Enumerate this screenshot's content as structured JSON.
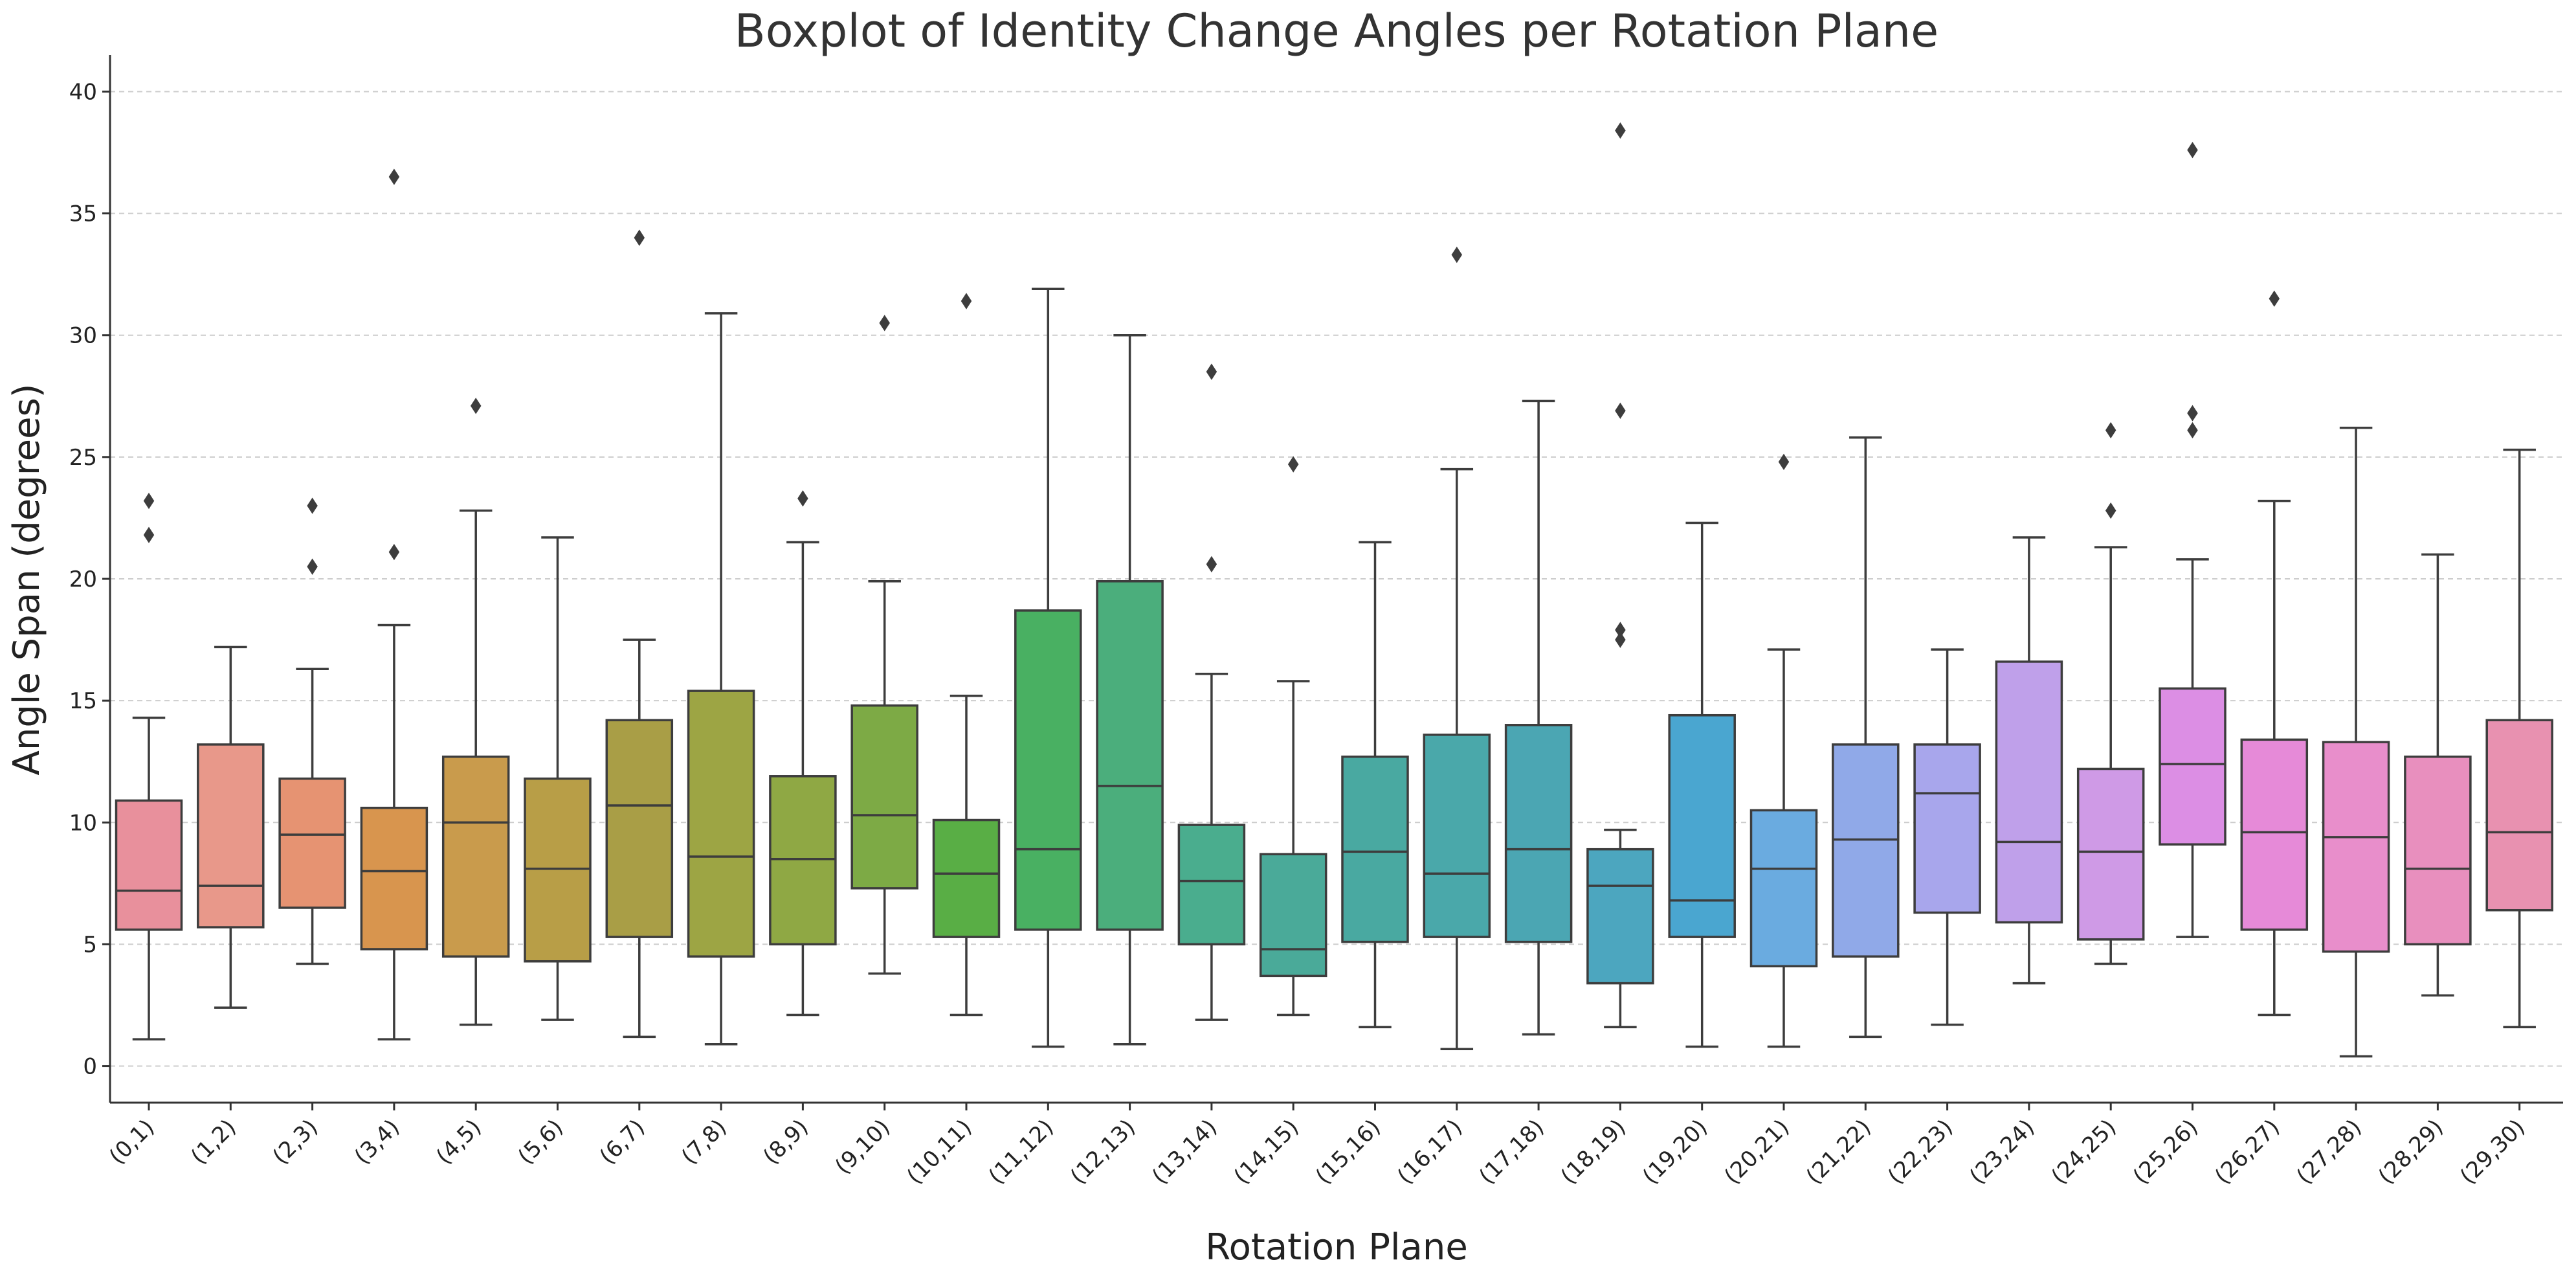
{
  "chart_data": {
    "type": "boxplot",
    "title": "Boxplot of Identity Change Angles per Rotation Plane",
    "xlabel": "Rotation Plane",
    "ylabel": "Angle Span (degrees)",
    "ylim": [
      -1.5,
      41.5
    ],
    "yticks": [
      0,
      5,
      10,
      15,
      20,
      25,
      30,
      35,
      40
    ],
    "ytick_labels": [
      "0",
      "5",
      "10",
      "15",
      "20",
      "25",
      "30",
      "35",
      "40"
    ],
    "grid": "horizontal dashed",
    "categories": [
      "(0,1)",
      "(1,2)",
      "(2,3)",
      "(3,4)",
      "(4,5)",
      "(5,6)",
      "(6,7)",
      "(7,8)",
      "(8,9)",
      "(9,10)",
      "(10,11)",
      "(11,12)",
      "(12,13)",
      "(13,14)",
      "(14,15)",
      "(15,16)",
      "(16,17)",
      "(17,18)",
      "(18,19)",
      "(19,20)",
      "(20,21)",
      "(21,22)",
      "(22,23)",
      "(23,24)",
      "(24,25)",
      "(25,26)",
      "(26,27)",
      "(27,28)",
      "(28,29)",
      "(29,30)"
    ],
    "boxes": [
      {
        "whislo": 1.1,
        "q1": 5.6,
        "med": 7.2,
        "q3": 10.9,
        "whishi": 14.3,
        "fliers": [
          21.8,
          23.2
        ],
        "color": "#e8909c"
      },
      {
        "whislo": 2.4,
        "q1": 5.7,
        "med": 7.4,
        "q3": 13.2,
        "whishi": 17.2,
        "fliers": [],
        "color": "#e8988a"
      },
      {
        "whislo": 4.2,
        "q1": 6.5,
        "med": 9.5,
        "q3": 11.8,
        "whishi": 16.3,
        "fliers": [
          20.5,
          23.0
        ],
        "color": "#e69372"
      },
      {
        "whislo": 1.1,
        "q1": 4.8,
        "med": 8.0,
        "q3": 10.6,
        "whishi": 18.1,
        "fliers": [
          21.1,
          36.5
        ],
        "color": "#d8954e"
      },
      {
        "whislo": 1.7,
        "q1": 4.5,
        "med": 10.0,
        "q3": 12.7,
        "whishi": 22.8,
        "fliers": [
          27.1
        ],
        "color": "#c99b4c"
      },
      {
        "whislo": 1.9,
        "q1": 4.3,
        "med": 8.1,
        "q3": 11.8,
        "whishi": 21.7,
        "fliers": [],
        "color": "#b89e47"
      },
      {
        "whislo": 1.2,
        "q1": 5.3,
        "med": 10.7,
        "q3": 14.2,
        "whishi": 17.5,
        "fliers": [
          34.0
        ],
        "color": "#a99e46"
      },
      {
        "whislo": 0.9,
        "q1": 4.5,
        "med": 8.6,
        "q3": 15.4,
        "whishi": 30.9,
        "fliers": [],
        "color": "#9da544"
      },
      {
        "whislo": 2.1,
        "q1": 5.0,
        "med": 8.5,
        "q3": 11.9,
        "whishi": 21.5,
        "fliers": [
          23.3
        ],
        "color": "#8fa844"
      },
      {
        "whislo": 3.8,
        "q1": 7.3,
        "med": 10.3,
        "q3": 14.8,
        "whishi": 19.9,
        "fliers": [
          30.5
        ],
        "color": "#7daa45"
      },
      {
        "whislo": 2.1,
        "q1": 5.3,
        "med": 7.9,
        "q3": 10.1,
        "whishi": 15.2,
        "fliers": [
          31.4
        ],
        "color": "#59ae45"
      },
      {
        "whislo": 0.8,
        "q1": 5.6,
        "med": 8.9,
        "q3": 18.7,
        "whishi": 31.9,
        "fliers": [],
        "color": "#49b062"
      },
      {
        "whislo": 0.9,
        "q1": 5.6,
        "med": 11.5,
        "q3": 19.9,
        "whishi": 30.0,
        "fliers": [],
        "color": "#4bae7c"
      },
      {
        "whislo": 1.9,
        "q1": 5.0,
        "med": 7.6,
        "q3": 9.9,
        "whishi": 16.1,
        "fliers": [
          20.6,
          28.5
        ],
        "color": "#4aad8e"
      },
      {
        "whislo": 2.1,
        "q1": 3.7,
        "med": 4.8,
        "q3": 8.7,
        "whishi": 15.8,
        "fliers": [
          24.7
        ],
        "color": "#4aaa99"
      },
      {
        "whislo": 1.6,
        "q1": 5.1,
        "med": 8.8,
        "q3": 12.7,
        "whishi": 21.5,
        "fliers": [],
        "color": "#49a9a1"
      },
      {
        "whislo": 0.7,
        "q1": 5.3,
        "med": 7.9,
        "q3": 13.6,
        "whishi": 24.5,
        "fliers": [
          33.3
        ],
        "color": "#4aa8aa"
      },
      {
        "whislo": 1.3,
        "q1": 5.1,
        "med": 8.9,
        "q3": 14.0,
        "whishi": 27.3,
        "fliers": [],
        "color": "#4ba6b3"
      },
      {
        "whislo": 1.6,
        "q1": 3.4,
        "med": 7.4,
        "q3": 8.9,
        "whishi": 9.7,
        "fliers": [
          17.5,
          17.9,
          26.9,
          38.4
        ],
        "color": "#4ca6bf"
      },
      {
        "whislo": 0.8,
        "q1": 5.3,
        "med": 6.8,
        "q3": 14.4,
        "whishi": 22.3,
        "fliers": [],
        "color": "#4aa6d0"
      },
      {
        "whislo": 0.8,
        "q1": 4.1,
        "med": 8.1,
        "q3": 10.5,
        "whishi": 17.1,
        "fliers": [
          24.8
        ],
        "color": "#6aabe0"
      },
      {
        "whislo": 1.2,
        "q1": 4.5,
        "med": 9.3,
        "q3": 13.2,
        "whishi": 25.8,
        "fliers": [],
        "color": "#90a9e8"
      },
      {
        "whislo": 1.7,
        "q1": 6.3,
        "med": 11.2,
        "q3": 13.2,
        "whishi": 17.1,
        "fliers": [],
        "color": "#a8a6ec"
      },
      {
        "whislo": 3.4,
        "q1": 5.9,
        "med": 9.2,
        "q3": 16.6,
        "whishi": 21.7,
        "fliers": [],
        "color": "#bfa0ea"
      },
      {
        "whislo": 4.2,
        "q1": 5.2,
        "med": 8.8,
        "q3": 12.2,
        "whishi": 21.3,
        "fliers": [
          22.8,
          26.1
        ],
        "color": "#cf9ae6"
      },
      {
        "whislo": 5.3,
        "q1": 9.1,
        "med": 12.4,
        "q3": 15.5,
        "whishi": 20.8,
        "fliers": [
          26.1,
          26.8,
          37.6
        ],
        "color": "#dc8ee4"
      },
      {
        "whislo": 2.1,
        "q1": 5.6,
        "med": 9.6,
        "q3": 13.4,
        "whishi": 23.2,
        "fliers": [
          31.5
        ],
        "color": "#e68ad8"
      },
      {
        "whislo": 0.4,
        "q1": 4.7,
        "med": 9.4,
        "q3": 13.3,
        "whishi": 26.2,
        "fliers": [],
        "color": "#e88ecb"
      },
      {
        "whislo": 2.9,
        "q1": 5.0,
        "med": 8.1,
        "q3": 12.7,
        "whishi": 21.0,
        "fliers": [],
        "color": "#e88fbe"
      },
      {
        "whislo": 1.6,
        "q1": 6.4,
        "med": 9.6,
        "q3": 14.2,
        "whishi": 25.3,
        "fliers": [],
        "color": "#e891b0"
      }
    ]
  }
}
